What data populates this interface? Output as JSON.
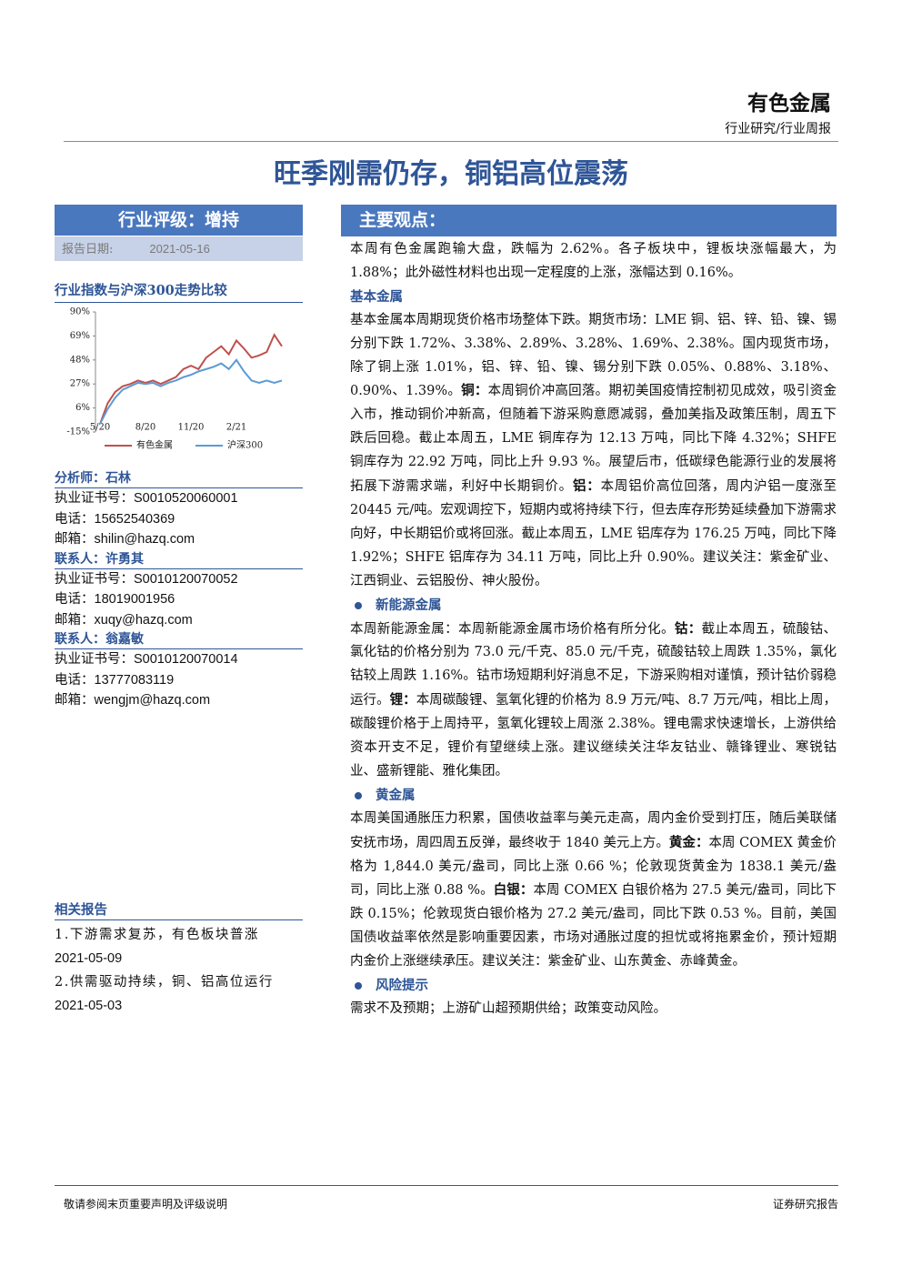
{
  "header": {
    "sector": "有色金属",
    "subtitle": "行业研究/行业周报"
  },
  "title": "旺季刚需仍存，铜铝高位震荡",
  "sidebar": {
    "rating": "行业评级：增持",
    "date_label": "报告日期:",
    "date": "2021-05-16",
    "contacts": [
      {
        "heading": "分析师：石林",
        "lines": [
          "执业证书号：S0010520060001",
          "电话：15652540369",
          "邮箱：shilin@hazq.com"
        ]
      },
      {
        "heading": "联系人：许勇其",
        "lines": [
          "执业证书号：S0010120070052",
          "电话：18019001956",
          "邮箱：xuqy@hazq.com"
        ]
      },
      {
        "heading": "联系人：翁嘉敏",
        "lines": [
          "执业证书号：S0010120070014",
          "电话：13777083119",
          "邮箱：wengjm@hazq.com"
        ]
      }
    ],
    "related": {
      "heading": "相关报告",
      "items": [
        {
          "title": "1.下游需求复苏，有色板块普涨",
          "date": "2021-05-09"
        },
        {
          "title": "2.供需驱动持续，铜、铝高位运行",
          "date": "2021-05-03"
        }
      ]
    }
  },
  "chart_data": {
    "type": "line",
    "title": "行业指数与沪深300走势比较",
    "categories": [
      "5/20",
      null,
      null,
      null,
      null,
      null,
      "8/20",
      null,
      null,
      null,
      null,
      null,
      "11/20",
      null,
      null,
      null,
      null,
      null,
      "2/21",
      null,
      null,
      null,
      null,
      null,
      null
    ],
    "series": [
      {
        "name": "有色金属",
        "color": "#c0504d",
        "values": [
          -8,
          10,
          20,
          25,
          27,
          30,
          28,
          30,
          27,
          30,
          33,
          40,
          43,
          40,
          50,
          55,
          60,
          53,
          65,
          58,
          50,
          52,
          55,
          70,
          60
        ]
      },
      {
        "name": "沪深300",
        "color": "#5b9bd5",
        "values": [
          -8,
          5,
          15,
          22,
          25,
          28,
          27,
          28,
          25,
          28,
          30,
          33,
          35,
          38,
          40,
          42,
          45,
          40,
          48,
          38,
          30,
          28,
          30,
          28,
          30
        ]
      }
    ],
    "ylim": [
      -15,
      90
    ],
    "yticks": [
      {
        "value": 90,
        "label": "90%"
      },
      {
        "value": 69,
        "label": "69%"
      },
      {
        "value": 48,
        "label": "48%"
      },
      {
        "value": 27,
        "label": "27%"
      },
      {
        "value": 6,
        "label": "6%"
      },
      {
        "value": -15,
        "label": "-15%"
      }
    ],
    "grid": false,
    "legend": "bottom"
  },
  "main": {
    "heading": "主要观点：",
    "intro": [
      "本周有色金属跑输大盘，跌幅为 2.62%。各子板块中，锂板块涨幅最大，为 1.88%；此外磁性材料也出现一定程度的上涨，涨幅达到 0.16%。"
    ],
    "sections": [
      {
        "heading": "基本金属",
        "bullet": false,
        "paragraph": [
          "基本金属本周期现货价格市场整体下跌。期货市场：LME 铜、铝、锌、铅、镍、锡分别下跌 1.72%、3.38%、2.89%、3.28%、1.69%、2.38%。国内现货市场，除了铜上涨 1.01%，铝、锌、铅、镍、锡分别下跌 0.05%、0.88%、3.18%、0.90%、1.39%。",
          {
            "bold": "铜："
          },
          "本周铜价冲高回落。期初美国疫情控制初见成效，吸引资金入市，推动铜价冲新高，但随着下游采购意愿减弱，叠加美指及政策压制，周五下跌后回稳。截止本周五，LME 铜库存为 12.13 万吨，同比下降 4.32%；SHFE 铜库存为 22.92 万吨，同比上升 9.93 %。展望后市，低碳绿色能源行业的发展将拓展下游需求端，利好中长期铜价。",
          {
            "bold": "铝："
          },
          "本周铝价高位回落，周内沪铝一度涨至 20445 元/吨。宏观调控下，短期内或将持续下行，但去库存形势延续叠加下游需求向好，中长期铝价或将回涨。截止本周五，LME 铝库存为 176.25 万吨，同比下降 1.92%；SHFE 铝库存为 34.11 万吨，同比上升 0.90%。建议关注：紫金矿业、江西铜业、云铝股份、神火股份。"
        ]
      },
      {
        "heading": "新能源金属",
        "bullet": true,
        "paragraph": [
          "本周新能源金属：本周新能源金属市场价格有所分化。",
          {
            "bold": "钴："
          },
          "截止本周五，硫酸钴、氯化钴的价格分别为 73.0 元/千克、85.0 元/千克，硫酸钴较上周跌 1.35%，氯化钴较上周跌 1.16%。钴市场短期利好消息不足，下游采购相对谨慎，预计钴价弱稳运行。",
          {
            "bold": "锂："
          },
          "本周碳酸锂、氢氧化锂的价格为 8.9 万元/吨、8.7 万元/吨，相比上周，碳酸锂价格于上周持平，氢氧化锂较上周涨 2.38%。锂电需求快速增长，上游供给资本开支不足，锂价有望继续上涨。建议继续关注华友钴业、赣锋锂业、寒锐钴业、盛新锂能、雅化集团。"
        ]
      },
      {
        "heading": "黄金属",
        "bullet": true,
        "paragraph": [
          "本周美国通胀压力积累，国债收益率与美元走高，周内金价受到打压，随后美联储安抚市场，周四周五反弹，最终收于 1840 美元上方。",
          {
            "bold": "黄金："
          },
          "本周 COMEX 黄金价格为 1,844.0 美元/盎司，同比上涨 0.66 %；伦敦现货黄金为 1838.1 美元/盎司，同比上涨 0.88 %。",
          {
            "bold": "白银："
          },
          "本周 COMEX 白银价格为 27.5 美元/盎司，同比下跌 0.15%；伦敦现货白银价格为 27.2 美元/盎司，同比下跌 0.53 %。目前，美国国债收益率依然是影响重要因素，市场对通胀过度的担忧或将拖累金价，预计短期内金价上涨继续承压。建议关注：紫金矿业、山东黄金、赤峰黄金。"
        ]
      },
      {
        "heading": "风险提示",
        "bullet": true,
        "paragraph": [
          "需求不及预期；上游矿山超预期供给；政策变动风险。"
        ]
      }
    ]
  },
  "footer": {
    "left": "敬请参阅末页重要声明及评级说明",
    "right": "证券研究报告"
  }
}
